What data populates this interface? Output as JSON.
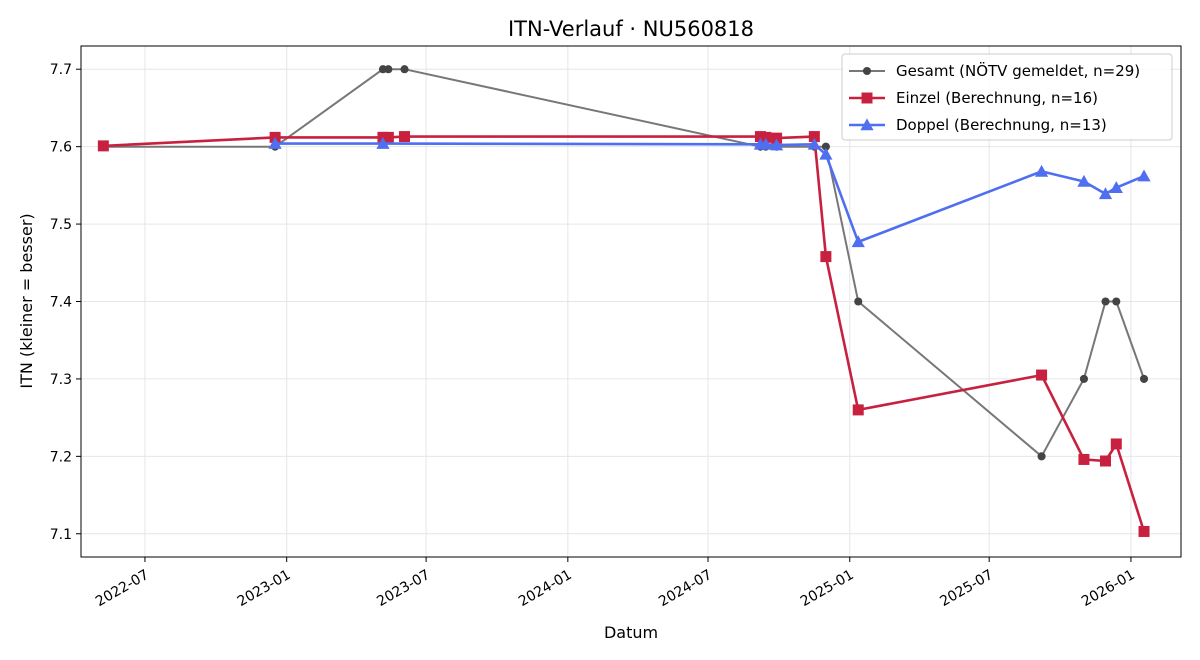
{
  "chart_data": {
    "type": "line",
    "title": "ITN-Verlauf · NU560818",
    "xlabel": "Datum",
    "ylabel": "ITN  (kleiner = besser)",
    "x_type": "date",
    "xlim": [
      "2022-04-09",
      "2026-03-07"
    ],
    "ylim": [
      7.07,
      7.73
    ],
    "xticks": [
      {
        "value": "2022-07-01",
        "label": "2022-07"
      },
      {
        "value": "2023-01-01",
        "label": "2023-01"
      },
      {
        "value": "2023-07-01",
        "label": "2023-07"
      },
      {
        "value": "2024-01-01",
        "label": "2024-01"
      },
      {
        "value": "2024-07-01",
        "label": "2024-07"
      },
      {
        "value": "2025-01-01",
        "label": "2025-01"
      },
      {
        "value": "2025-07-01",
        "label": "2025-07"
      },
      {
        "value": "2026-01-01",
        "label": "2026-01"
      }
    ],
    "yticks": [
      7.1,
      7.2,
      7.3,
      7.4,
      7.5,
      7.6,
      7.7
    ],
    "ytick_labels": [
      "7.1",
      "7.2",
      "7.3",
      "7.4",
      "7.5",
      "7.6",
      "7.7"
    ],
    "grid": true,
    "legend_position": "top-right",
    "series": [
      {
        "name": "Gesamt (NÖTV gemeldet, n=29)",
        "color": "#777777",
        "marker_color": "#444444",
        "marker": "circle",
        "points": [
          {
            "x": "2022-05-08",
            "y": 7.6
          },
          {
            "x": "2022-12-17",
            "y": 7.6
          },
          {
            "x": "2023-05-06",
            "y": 7.7
          },
          {
            "x": "2023-05-13",
            "y": 7.7
          },
          {
            "x": "2023-06-03",
            "y": 7.7
          },
          {
            "x": "2024-09-07",
            "y": 7.6
          },
          {
            "x": "2024-09-14",
            "y": 7.6
          },
          {
            "x": "2024-09-28",
            "y": 7.6
          },
          {
            "x": "2024-11-16",
            "y": 7.6
          },
          {
            "x": "2024-12-01",
            "y": 7.6
          },
          {
            "x": "2025-01-12",
            "y": 7.4
          },
          {
            "x": "2025-09-07",
            "y": 7.2
          },
          {
            "x": "2025-11-01",
            "y": 7.3
          },
          {
            "x": "2025-11-29",
            "y": 7.4
          },
          {
            "x": "2025-12-13",
            "y": 7.4
          },
          {
            "x": "2026-01-18",
            "y": 7.3
          }
        ]
      },
      {
        "name": "Einzel (Berechnung, n=16)",
        "color": "#c8203f",
        "marker_color": "#c8203f",
        "marker": "square",
        "points": [
          {
            "x": "2022-05-08",
            "y": 7.601
          },
          {
            "x": "2022-12-17",
            "y": 7.612
          },
          {
            "x": "2023-05-06",
            "y": 7.612
          },
          {
            "x": "2023-05-13",
            "y": 7.612
          },
          {
            "x": "2023-06-03",
            "y": 7.613
          },
          {
            "x": "2024-09-07",
            "y": 7.613
          },
          {
            "x": "2024-09-14",
            "y": 7.612
          },
          {
            "x": "2024-09-28",
            "y": 7.611
          },
          {
            "x": "2024-11-16",
            "y": 7.613
          },
          {
            "x": "2024-12-01",
            "y": 7.458
          },
          {
            "x": "2025-01-12",
            "y": 7.26
          },
          {
            "x": "2025-09-07",
            "y": 7.305
          },
          {
            "x": "2025-11-01",
            "y": 7.196
          },
          {
            "x": "2025-11-29",
            "y": 7.194
          },
          {
            "x": "2025-12-13",
            "y": 7.216
          },
          {
            "x": "2026-01-18",
            "y": 7.103
          }
        ]
      },
      {
        "name": "Doppel (Berechnung, n=13)",
        "color": "#4f6ff0",
        "marker_color": "#4f6ff0",
        "marker": "triangle",
        "points": [
          {
            "x": "2022-12-17",
            "y": 7.604
          },
          {
            "x": "2023-05-06",
            "y": 7.604
          },
          {
            "x": "2024-09-07",
            "y": 7.603
          },
          {
            "x": "2024-09-14",
            "y": 7.603
          },
          {
            "x": "2024-09-28",
            "y": 7.602
          },
          {
            "x": "2024-11-16",
            "y": 7.603
          },
          {
            "x": "2024-12-01",
            "y": 7.59
          },
          {
            "x": "2025-01-12",
            "y": 7.477
          },
          {
            "x": "2025-09-07",
            "y": 7.568
          },
          {
            "x": "2025-11-01",
            "y": 7.555
          },
          {
            "x": "2025-11-29",
            "y": 7.539
          },
          {
            "x": "2025-12-13",
            "y": 7.547
          },
          {
            "x": "2026-01-18",
            "y": 7.562
          }
        ]
      }
    ]
  }
}
